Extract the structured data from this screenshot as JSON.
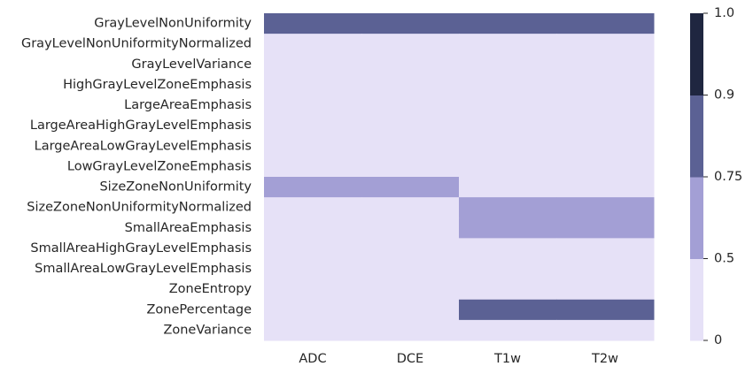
{
  "chart_data": {
    "type": "heatmap",
    "title": "",
    "xlabel": "",
    "ylabel": "",
    "x_categories": [
      "ADC",
      "DCE",
      "T1w",
      "T2w"
    ],
    "y_categories": [
      "GrayLevelNonUniformity",
      "GrayLevelNonUniformityNormalized",
      "GrayLevelVariance",
      "HighGrayLevelZoneEmphasis",
      "LargeAreaEmphasis",
      "LargeAreaHighGrayLevelEmphasis",
      "LargeAreaLowGrayLevelEmphasis",
      "LowGrayLevelZoneEmphasis",
      "SizeZoneNonUniformity",
      "SizeZoneNonUniformityNormalized",
      "SmallAreaEmphasis",
      "SmallAreaHighGrayLevelEmphasis",
      "SmallAreaLowGrayLevelEmphasis",
      "ZoneEntropy",
      "ZonePercentage",
      "ZoneVariance"
    ],
    "values": [
      [
        0.8,
        0.8,
        0.8,
        0.8
      ],
      [
        0,
        0,
        0,
        0
      ],
      [
        0,
        0,
        0,
        0
      ],
      [
        0,
        0,
        0,
        0
      ],
      [
        0,
        0,
        0,
        0
      ],
      [
        0,
        0,
        0,
        0
      ],
      [
        0,
        0,
        0,
        0
      ],
      [
        0,
        0,
        0,
        0
      ],
      [
        0.6,
        0.6,
        0,
        0
      ],
      [
        0,
        0,
        0.6,
        0.6
      ],
      [
        0,
        0,
        0.6,
        0.6
      ],
      [
        0,
        0,
        0,
        0
      ],
      [
        0,
        0,
        0,
        0
      ],
      [
        0,
        0,
        0,
        0
      ],
      [
        0,
        0,
        0.8,
        0.8
      ],
      [
        0,
        0,
        0,
        0
      ]
    ],
    "colorbar": {
      "boundaries": [
        0,
        0.5,
        0.75,
        0.9,
        1.0
      ],
      "tick_labels": [
        "0",
        "0.5",
        "0.75",
        "0.9",
        "1.0"
      ],
      "colors": [
        "#e6e1f7",
        "#a39fd5",
        "#5b6194",
        "#1f2640"
      ]
    },
    "grid": false,
    "legend": "colorbar-right"
  }
}
